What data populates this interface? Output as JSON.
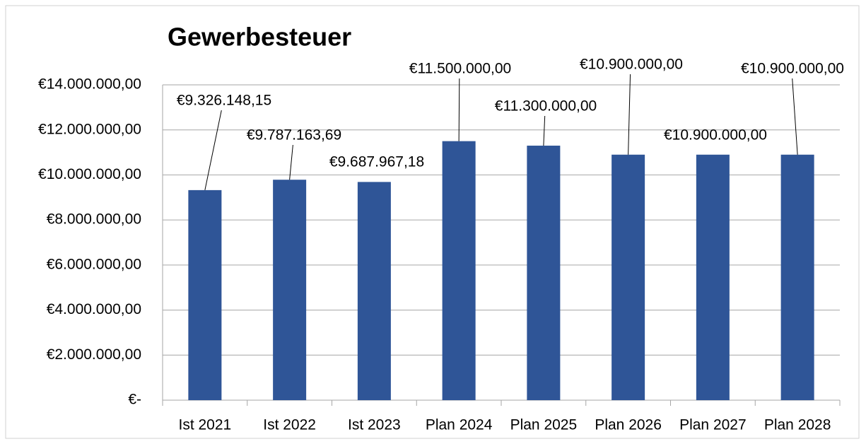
{
  "chart_data": {
    "type": "bar",
    "title": "Gewerbesteuer",
    "categories": [
      "Ist 2021",
      "Ist 2022",
      "Ist 2023",
      "Plan 2024",
      "Plan 2025",
      "Plan 2026",
      "Plan 2027",
      "Plan 2028"
    ],
    "values": [
      9326148.15,
      9787163.69,
      9687967.18,
      11500000,
      11300000,
      10900000,
      10900000,
      10900000
    ],
    "value_labels": [
      "€9.326.148,15",
      "€9.787.163,69",
      "€9.687.967,18",
      "€11.500.000,00",
      "€11.300.000,00",
      "€10.900.000,00",
      "€10.900.000,00",
      "€10.900.000,00"
    ],
    "color": "#2f5597",
    "ylim": [
      0,
      14000000
    ],
    "yticks": [
      {
        "value": 0,
        "label": "€-"
      },
      {
        "value": 2000000,
        "label": "€2.000.000,00"
      },
      {
        "value": 4000000,
        "label": "€4.000.000,00"
      },
      {
        "value": 6000000,
        "label": "€6.000.000,00"
      },
      {
        "value": 8000000,
        "label": "€8.000.000,00"
      },
      {
        "value": 10000000,
        "label": "€10.000.000,00"
      },
      {
        "value": 12000000,
        "label": "€12.000.000,00"
      },
      {
        "value": 14000000,
        "label": "€14.000.000,00"
      }
    ],
    "grid": true
  }
}
